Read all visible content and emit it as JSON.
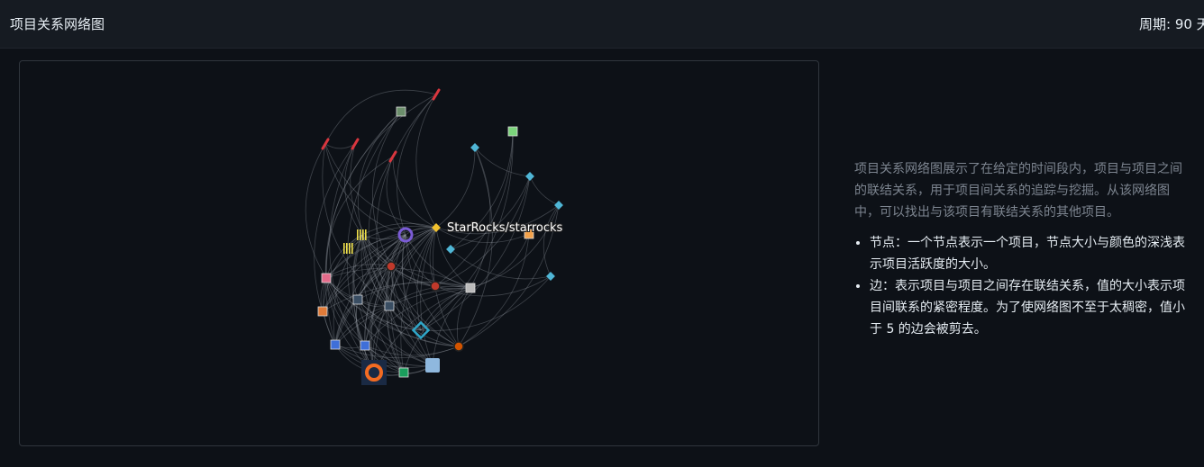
{
  "header": {
    "title": "项目关系网络图",
    "period": "周期: 90 天"
  },
  "graph": {
    "highlight_label": "StarRocks/starrocks",
    "edge_color": "#9aa0a8",
    "node_icons": [
      "feather-icon",
      "avatar-icon",
      "cube-icon",
      "document-icon",
      "bars-icon",
      "octopus-icon",
      "dot-icon",
      "grafana-icon",
      "snowflake-icon",
      "box-icon"
    ]
  },
  "info": {
    "description": "项目关系网络图展示了在给定的时间段内，项目与项目之间的联结关系，用于项目间关系的追踪与挖掘。从该网络图中，可以找出与该项目有联结关系的其他项目。",
    "items": [
      "节点：一个节点表示一个项目，节点大小与颜色的深浅表示项目活跃度的大小。",
      "边：表示项目与项目之间存在联结关系，值的大小表示项目间联系的紧密程度。为了使网络图不至于太稠密，值小于 5 的边会被剪去。"
    ]
  }
}
